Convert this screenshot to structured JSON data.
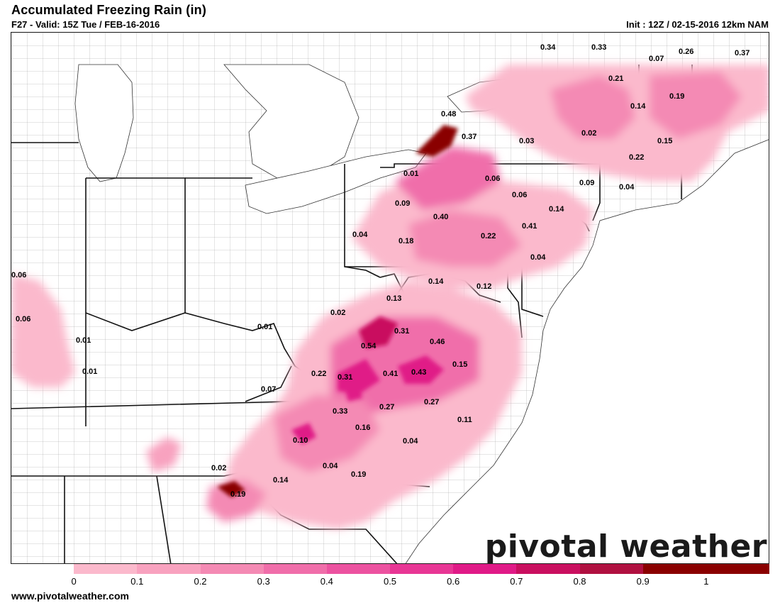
{
  "header": {
    "title": "Accumulated Freezing Rain (in)",
    "subtitle": "F27 - Valid: 15Z Tue / FEB-16-2016",
    "init": "Init : 12Z / 02-15-2016 12km NAM"
  },
  "logo": {
    "text": "pivotal weather"
  },
  "footer": {
    "url": "www.pivotalweather.com"
  },
  "legend": {
    "ticks": [
      "0",
      "0.1",
      "0.2",
      "0.3",
      "0.4",
      "0.5",
      "0.6",
      "0.7",
      "0.8",
      "0.9",
      "1"
    ],
    "colors": [
      "#ffffff",
      "#fbb9cc",
      "#f8a2bf",
      "#f48ab4",
      "#f06eaa",
      "#ec52a0",
      "#e83695",
      "#e01a87",
      "#c90f5f",
      "#b01040",
      "#8a0000"
    ]
  },
  "map": {
    "labels": [
      {
        "text": "0.34"
      },
      {
        "text": "0.33"
      },
      {
        "text": "0.07"
      },
      {
        "text": "0.26"
      },
      {
        "text": "0.37"
      },
      {
        "text": "0.21"
      },
      {
        "text": "0.19"
      },
      {
        "text": "0.14"
      },
      {
        "text": "0.48"
      },
      {
        "text": "0.37"
      },
      {
        "text": "0.03"
      },
      {
        "text": "0.02"
      },
      {
        "text": "0.15"
      },
      {
        "text": "0.22"
      },
      {
        "text": "0.01"
      },
      {
        "text": "0.06"
      },
      {
        "text": "0.06"
      },
      {
        "text": "0.09"
      },
      {
        "text": "0.04"
      },
      {
        "text": "0.09"
      },
      {
        "text": "0.40"
      },
      {
        "text": "0.14"
      },
      {
        "text": "0.04"
      },
      {
        "text": "0.18"
      },
      {
        "text": "0.22"
      },
      {
        "text": "0.41"
      },
      {
        "text": "0.04"
      },
      {
        "text": "0.06"
      },
      {
        "text": "0.06"
      },
      {
        "text": "0.14"
      },
      {
        "text": "0.12"
      },
      {
        "text": "0.13"
      },
      {
        "text": "0.02"
      },
      {
        "text": "0.01"
      },
      {
        "text": "0.31"
      },
      {
        "text": "0.01"
      },
      {
        "text": "0.54"
      },
      {
        "text": "0.46"
      },
      {
        "text": "0.01"
      },
      {
        "text": "0.22"
      },
      {
        "text": "0.31"
      },
      {
        "text": "0.41"
      },
      {
        "text": "0.43"
      },
      {
        "text": "0.15"
      },
      {
        "text": "0.07"
      },
      {
        "text": "0.33"
      },
      {
        "text": "0.27"
      },
      {
        "text": "0.27"
      },
      {
        "text": "0.11"
      },
      {
        "text": "0.16"
      },
      {
        "text": "0.10"
      },
      {
        "text": "0.04"
      },
      {
        "text": "0.02"
      },
      {
        "text": "0.04"
      },
      {
        "text": "0.19"
      },
      {
        "text": "0.14"
      },
      {
        "text": "0.19"
      }
    ]
  }
}
